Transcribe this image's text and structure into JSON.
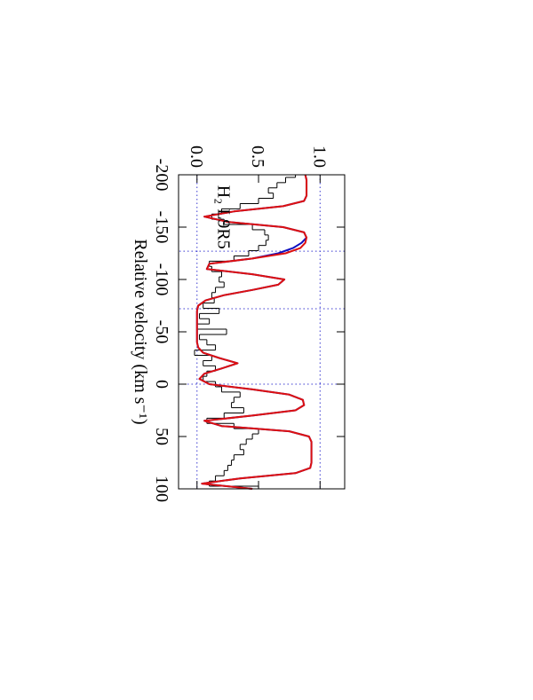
{
  "chart_data": {
    "type": "line",
    "xlabel": "Relative velocity (km s⁻¹)",
    "annotation": "H₂ L9R5",
    "xlim": [
      -200,
      100
    ],
    "ylim": [
      -0.15,
      1.2
    ],
    "xticks": [
      -200,
      -150,
      -100,
      -50,
      0,
      50,
      100
    ],
    "yticks": [
      {
        "value": 0,
        "label": "0.0"
      },
      {
        "value": 0.5,
        "label": "0.5"
      },
      {
        "value": 1,
        "label": "1.0"
      }
    ],
    "hlines": [
      0,
      1
    ],
    "vlines": [
      -127,
      -72,
      0
    ],
    "refline_color": "#3a3ad0",
    "x": [
      -200,
      -195,
      -190,
      -185,
      -180,
      -175,
      -170,
      -165,
      -160,
      -155,
      -150,
      -145,
      -140,
      -135,
      -130,
      -125,
      -120,
      -115,
      -110,
      -105,
      -100,
      -95,
      -90,
      -85,
      -80,
      -75,
      -70,
      -65,
      -60,
      -55,
      -50,
      -45,
      -40,
      -35,
      -30,
      -25,
      -20,
      -15,
      -10,
      -5,
      0,
      5,
      10,
      15,
      20,
      25,
      30,
      35,
      40,
      45,
      50,
      55,
      60,
      65,
      70,
      75,
      80,
      85,
      90,
      95,
      100
    ],
    "series": [
      {
        "color": "#000000",
        "drawstyle": "steps-mid",
        "values": [
          0.8,
          0.72,
          0.65,
          0.58,
          0.62,
          0.5,
          0.35,
          0.2,
          0.12,
          0.22,
          0.45,
          0.55,
          0.58,
          0.56,
          0.5,
          0.42,
          0.3,
          0.1,
          0.12,
          0.2,
          0.18,
          0.22,
          0.15,
          0.12,
          0.14,
          0.05,
          0.18,
          0.02,
          0.1,
          0.0,
          0.24,
          0.02,
          0.08,
          0.15,
          -0.02,
          0.12,
          0.05,
          0.15,
          0.08,
          0.05,
          0.15,
          0.2,
          0.35,
          0.3,
          0.28,
          0.38,
          0.22,
          0.08,
          0.3,
          0.5,
          0.45,
          0.4,
          0.35,
          0.38,
          0.3,
          0.28,
          0.25,
          0.22,
          0.15,
          0.1,
          0.5
        ]
      },
      {
        "color": "#1010c0",
        "drawstyle": "line",
        "values": [
          0.88,
          0.89,
          0.89,
          0.89,
          0.89,
          0.87,
          0.7,
          0.3,
          0.06,
          0.25,
          0.7,
          0.87,
          0.89,
          0.85,
          0.78,
          0.66,
          0.45,
          0.1,
          0.08,
          0.45,
          0.71,
          0.66,
          0.45,
          0.22,
          0.07,
          0.01,
          0.0,
          0.0,
          0.0,
          0.0,
          0.0,
          0.0,
          0.0,
          0.01,
          0.05,
          0.18,
          0.33,
          0.2,
          0.06,
          0.02,
          0.1,
          0.45,
          0.75,
          0.86,
          0.87,
          0.8,
          0.45,
          0.06,
          0.2,
          0.75,
          0.91,
          0.93,
          0.93,
          0.93,
          0.93,
          0.93,
          0.92,
          0.8,
          0.35,
          0.04,
          0.45
        ]
      },
      {
        "color": "#dd1010",
        "drawstyle": "line",
        "values": [
          0.88,
          0.89,
          0.89,
          0.89,
          0.89,
          0.87,
          0.7,
          0.3,
          0.06,
          0.25,
          0.7,
          0.87,
          0.89,
          0.88,
          0.84,
          0.72,
          0.45,
          0.1,
          0.08,
          0.45,
          0.71,
          0.66,
          0.45,
          0.22,
          0.07,
          0.01,
          0.0,
          0.0,
          0.0,
          0.0,
          0.0,
          0.0,
          0.0,
          0.01,
          0.05,
          0.18,
          0.33,
          0.2,
          0.06,
          0.02,
          0.1,
          0.45,
          0.75,
          0.86,
          0.87,
          0.8,
          0.45,
          0.06,
          0.2,
          0.75,
          0.91,
          0.93,
          0.93,
          0.93,
          0.93,
          0.93,
          0.92,
          0.8,
          0.35,
          0.04,
          0.45
        ]
      }
    ]
  }
}
